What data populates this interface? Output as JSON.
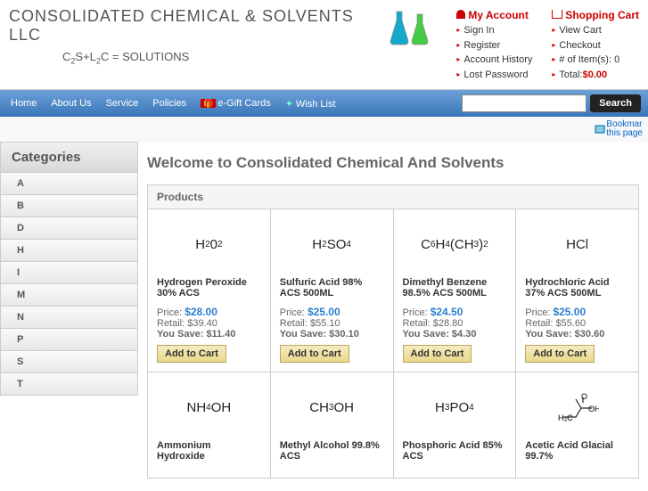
{
  "logo": {
    "title": "CONSOLIDATED CHEMICAL & SOLVENTS LLC",
    "formula_html": "C<sub>2</sub>S+L<sub>2</sub>C = SOLUTIONS"
  },
  "account": {
    "title": "My Account",
    "links": [
      "Sign In",
      "Register",
      "Account History",
      "Lost Password"
    ]
  },
  "cart": {
    "title": "Shopping Cart",
    "links": [
      "View Cart",
      "Checkout"
    ],
    "items_label": "# of Item(s): 0",
    "total_label": "Total:",
    "total_value": "$0.00"
  },
  "nav": [
    "Home",
    "About Us",
    "Service",
    "Policies"
  ],
  "nav_gift": "e-Gift Cards",
  "nav_wish": "Wish List",
  "search_btn": "Search",
  "bookmark": "Bookmar\nthis page",
  "sidebar": {
    "title": "Categories",
    "items": [
      "A",
      "B",
      "D",
      "H",
      "I",
      "M",
      "N",
      "P",
      "S",
      "T"
    ]
  },
  "page_title": "Welcome to Consolidated Chemical And Solvents",
  "products_head": "Products",
  "products": [
    {
      "formula": "H<sub>2</sub>0<sub>2</sub>",
      "name": "Hydrogen Peroxide 30% ACS",
      "price": "$28.00",
      "retail": "$39.40",
      "save": "$11.40"
    },
    {
      "formula": "H<sub>2</sub>SO<sub>4</sub>",
      "name": "Sulfuric Acid 98% ACS 500ML",
      "price": "$25.00",
      "retail": "$55.10",
      "save": "$30.10"
    },
    {
      "formula": "C<sub>6</sub>H<sub>4</sub>(CH<sub>3</sub>)<sub>2</sub>",
      "name": "Dimethyl Benzene 98.5% ACS 500ML",
      "price": "$24.50",
      "retail": "$28.80",
      "save": "$4.30"
    },
    {
      "formula": "HCl",
      "name": "Hydrochloric Acid 37% ACS 500ML",
      "price": "$25.00",
      "retail": "$55.60",
      "save": "$30.60"
    },
    {
      "formula": "NH<sub>4</sub>OH",
      "name": "Ammonium Hydroxide",
      "price": "",
      "retail": "",
      "save": ""
    },
    {
      "formula": "CH<sub>3</sub>OH",
      "name": "Methyl Alcohol 99.8% ACS",
      "price": "",
      "retail": "",
      "save": ""
    },
    {
      "formula": "H<sub>3</sub>PO<sub>4</sub>",
      "name": "Phosphoric Acid 85% ACS",
      "price": "",
      "retail": "",
      "save": ""
    },
    {
      "formula": "<svg width='48' height='38'><path d='M8 30 L22 30 L28 20 L22 10 M28 20 L40 20 M30 14 L30 8' stroke='#222' stroke-width='1.2' fill='none'/><text x='2' y='34' font-size='9'>H₃C</text><text x='36' y='24' font-size='9'>OH</text><text x='28' y='10' font-size='9'>O</text></svg>",
      "name": "Acetic Acid Glacial 99.7%",
      "price": "",
      "retail": "",
      "save": ""
    }
  ],
  "price_label": "Price:",
  "retail_label": "Retail:",
  "save_label": "You Save:",
  "add_cart": "Add to Cart",
  "colors": {
    "nav_bg": "#3a76b8",
    "accent": "#c00",
    "price": "#2a7fd0"
  }
}
